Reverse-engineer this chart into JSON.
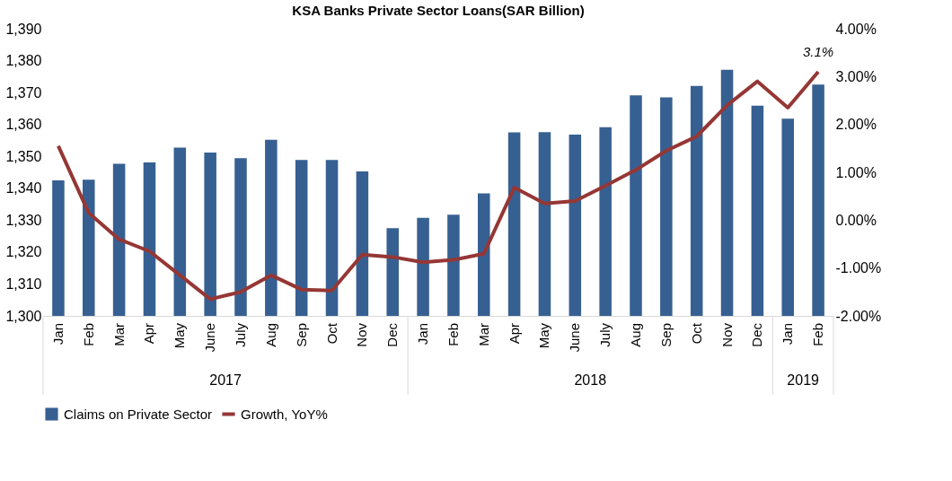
{
  "chart_data": {
    "type": "bar",
    "title": "KSA Banks Private Sector Loans(SAR Billion)",
    "categories": [
      "Jan",
      "Feb",
      "Mar",
      "Apr",
      "May",
      "June",
      "July",
      "Aug",
      "Sep",
      "Oct",
      "Nov",
      "Dec",
      "Jan",
      "Feb",
      "Mar",
      "Apr",
      "May",
      "June",
      "July",
      "Aug",
      "Sep",
      "Oct",
      "Nov",
      "Dec",
      "Jan",
      "Feb"
    ],
    "series": [
      {
        "name": "Claims on Private Sector",
        "color": "#376092",
        "values": [
          1342.5,
          1342.7,
          1347.7,
          1348.1,
          1352.7,
          1351.2,
          1349.4,
          1355.2,
          1348.9,
          1348.9,
          1345.3,
          1327.5,
          1330.7,
          1331.7,
          1338.4,
          1357.5,
          1357.6,
          1356.8,
          1359.1,
          1369.1,
          1368.5,
          1372.1,
          1377.1,
          1365.9,
          1361.8,
          1372.5
        ]
      },
      {
        "name": "Growth, YoY%",
        "type": "line",
        "axis": "y2",
        "color": "#953735",
        "values": [
          1.55,
          0.15,
          -0.4,
          -0.65,
          -1.15,
          -1.65,
          -1.5,
          -1.15,
          -1.45,
          -1.47,
          -0.72,
          -0.77,
          -0.88,
          -0.83,
          -0.7,
          0.68,
          0.35,
          0.4,
          0.72,
          1.05,
          1.45,
          1.75,
          2.4,
          2.9,
          2.35,
          3.1
        ],
        "value_labels": [
          null,
          null,
          null,
          null,
          null,
          null,
          null,
          null,
          null,
          null,
          null,
          null,
          null,
          null,
          null,
          null,
          null,
          null,
          null,
          null,
          null,
          null,
          null,
          null,
          null,
          "3.1%"
        ]
      }
    ],
    "ylim": [
      1300,
      1390
    ],
    "yticks": [
      {
        "value": 1300,
        "label": "1,300"
      },
      {
        "value": 1310,
        "label": "1,310"
      },
      {
        "value": 1320,
        "label": "1,320"
      },
      {
        "value": 1330,
        "label": "1,330"
      },
      {
        "value": 1340,
        "label": "1,340"
      },
      {
        "value": 1350,
        "label": "1,350"
      },
      {
        "value": 1360,
        "label": "1,360"
      },
      {
        "value": 1370,
        "label": "1,370"
      },
      {
        "value": 1380,
        "label": "1,380"
      },
      {
        "value": 1390,
        "label": "1,390"
      }
    ],
    "y2lim": [
      -2,
      4
    ],
    "y2ticks": [
      {
        "value": -2,
        "label": "-2.00%"
      },
      {
        "value": -1,
        "label": "-1.00%"
      },
      {
        "value": 0,
        "label": "0.00%"
      },
      {
        "value": 1,
        "label": "1.00%"
      },
      {
        "value": 2,
        "label": "2.00%"
      },
      {
        "value": 3,
        "label": "3.00%"
      },
      {
        "value": 4,
        "label": "4.00%"
      }
    ],
    "annotations": [
      "2017",
      "2018",
      "2019"
    ],
    "grid": false,
    "legend": "bottom"
  }
}
